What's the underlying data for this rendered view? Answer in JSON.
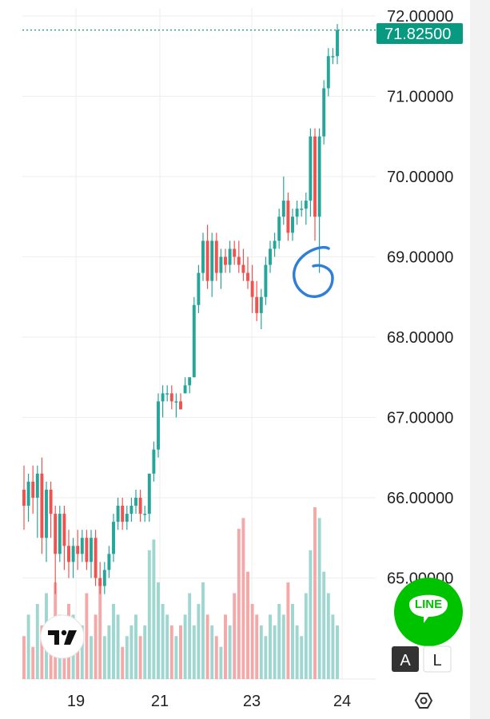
{
  "chart_data": {
    "type": "candlestick",
    "y_axis_ticks": [
      "72.00000",
      "71.00000",
      "70.00000",
      "69.00000",
      "68.00000",
      "67.00000",
      "66.00000",
      "65.00000"
    ],
    "y_axis_tick_values": [
      72,
      71,
      70,
      69,
      68,
      67,
      66,
      65
    ],
    "x_axis_ticks": [
      "19",
      "21",
      "23",
      "24"
    ],
    "current_price_label": "71.82500",
    "current_price": 71.825,
    "grid": true,
    "colors": {
      "up": "#26a69a",
      "down": "#ef5350",
      "up_volume": "#9fd6d0",
      "down_volume": "#f4a9a8",
      "price_tag": "#089981",
      "annotation": "#2f7fd8"
    },
    "candles": [
      {
        "o": 66.1,
        "h": 66.4,
        "l": 65.6,
        "c": 65.9
      },
      {
        "o": 65.9,
        "h": 66.3,
        "l": 65.7,
        "c": 66.2
      },
      {
        "o": 66.2,
        "h": 66.4,
        "l": 65.8,
        "c": 66.0
      },
      {
        "o": 66.0,
        "h": 66.4,
        "l": 65.5,
        "c": 66.3
      },
      {
        "o": 66.3,
        "h": 66.5,
        "l": 65.3,
        "c": 65.5
      },
      {
        "o": 65.5,
        "h": 66.2,
        "l": 65.2,
        "c": 66.1
      },
      {
        "o": 66.1,
        "h": 66.2,
        "l": 65.5,
        "c": 65.8
      },
      {
        "o": 65.8,
        "h": 65.9,
        "l": 64.8,
        "c": 65.3
      },
      {
        "o": 65.3,
        "h": 65.9,
        "l": 65.2,
        "c": 65.8
      },
      {
        "o": 65.8,
        "h": 65.9,
        "l": 65.1,
        "c": 65.4
      },
      {
        "o": 65.4,
        "h": 65.6,
        "l": 65.0,
        "c": 65.2
      },
      {
        "o": 65.2,
        "h": 65.5,
        "l": 65.0,
        "c": 65.4
      },
      {
        "o": 65.4,
        "h": 65.6,
        "l": 65.1,
        "c": 65.3
      },
      {
        "o": 65.3,
        "h": 65.6,
        "l": 65.2,
        "c": 65.5
      },
      {
        "o": 65.5,
        "h": 65.6,
        "l": 65.1,
        "c": 65.2
      },
      {
        "o": 65.2,
        "h": 65.6,
        "l": 65.0,
        "c": 65.5
      },
      {
        "o": 65.5,
        "h": 65.6,
        "l": 64.9,
        "c": 65.0
      },
      {
        "o": 65.0,
        "h": 65.2,
        "l": 64.8,
        "c": 64.9
      },
      {
        "o": 64.9,
        "h": 65.2,
        "l": 64.8,
        "c": 65.1
      },
      {
        "o": 65.1,
        "h": 65.4,
        "l": 65.0,
        "c": 65.3
      },
      {
        "o": 65.3,
        "h": 65.8,
        "l": 65.2,
        "c": 65.7
      },
      {
        "o": 65.7,
        "h": 66.0,
        "l": 65.6,
        "c": 65.9
      },
      {
        "o": 65.9,
        "h": 66.0,
        "l": 65.6,
        "c": 65.7
      },
      {
        "o": 65.7,
        "h": 65.9,
        "l": 65.6,
        "c": 65.8
      },
      {
        "o": 65.8,
        "h": 66.0,
        "l": 65.7,
        "c": 65.9
      },
      {
        "o": 65.9,
        "h": 66.1,
        "l": 65.8,
        "c": 66.0
      },
      {
        "o": 66.0,
        "h": 66.1,
        "l": 65.7,
        "c": 65.8
      },
      {
        "o": 65.8,
        "h": 65.9,
        "l": 65.7,
        "c": 65.8
      },
      {
        "o": 65.8,
        "h": 66.3,
        "l": 65.7,
        "c": 66.3
      },
      {
        "o": 66.3,
        "h": 66.7,
        "l": 66.2,
        "c": 66.6
      },
      {
        "o": 66.6,
        "h": 67.3,
        "l": 66.5,
        "c": 67.2
      },
      {
        "o": 67.2,
        "h": 67.4,
        "l": 67.0,
        "c": 67.3
      },
      {
        "o": 67.3,
        "h": 67.4,
        "l": 67.2,
        "c": 67.3
      },
      {
        "o": 67.3,
        "h": 67.4,
        "l": 67.1,
        "c": 67.2
      },
      {
        "o": 67.2,
        "h": 67.3,
        "l": 67.0,
        "c": 67.2
      },
      {
        "o": 67.2,
        "h": 67.3,
        "l": 67.1,
        "c": 67.1
      },
      {
        "o": 67.3,
        "h": 67.5,
        "l": 67.3,
        "c": 67.4
      },
      {
        "o": 67.4,
        "h": 67.5,
        "l": 67.3,
        "c": 67.5
      },
      {
        "o": 67.5,
        "h": 68.5,
        "l": 67.5,
        "c": 68.4
      },
      {
        "o": 68.4,
        "h": 68.9,
        "l": 68.3,
        "c": 68.8
      },
      {
        "o": 68.8,
        "h": 69.3,
        "l": 68.7,
        "c": 69.2
      },
      {
        "o": 69.2,
        "h": 69.4,
        "l": 68.6,
        "c": 68.7
      },
      {
        "o": 68.7,
        "h": 69.3,
        "l": 68.5,
        "c": 69.2
      },
      {
        "o": 69.2,
        "h": 69.3,
        "l": 68.7,
        "c": 68.8
      },
      {
        "o": 68.8,
        "h": 69.1,
        "l": 68.6,
        "c": 69.0
      },
      {
        "o": 69.0,
        "h": 69.1,
        "l": 68.8,
        "c": 68.9
      },
      {
        "o": 68.9,
        "h": 69.2,
        "l": 68.8,
        "c": 69.1
      },
      {
        "o": 69.1,
        "h": 69.2,
        "l": 68.9,
        "c": 69.0
      },
      {
        "o": 69.0,
        "h": 69.2,
        "l": 68.8,
        "c": 68.9
      },
      {
        "o": 68.9,
        "h": 69.1,
        "l": 68.7,
        "c": 68.8
      },
      {
        "o": 68.8,
        "h": 69.0,
        "l": 68.6,
        "c": 68.7
      },
      {
        "o": 68.7,
        "h": 68.9,
        "l": 68.3,
        "c": 68.5
      },
      {
        "o": 68.5,
        "h": 68.7,
        "l": 68.2,
        "c": 68.3
      },
      {
        "o": 68.3,
        "h": 68.6,
        "l": 68.1,
        "c": 68.5
      },
      {
        "o": 68.5,
        "h": 69.0,
        "l": 68.4,
        "c": 68.9
      },
      {
        "o": 68.9,
        "h": 69.2,
        "l": 68.8,
        "c": 69.1
      },
      {
        "o": 69.1,
        "h": 69.3,
        "l": 69.0,
        "c": 69.2
      },
      {
        "o": 69.2,
        "h": 69.6,
        "l": 69.1,
        "c": 69.5
      },
      {
        "o": 69.5,
        "h": 70.0,
        "l": 69.4,
        "c": 69.7
      },
      {
        "o": 69.7,
        "h": 69.8,
        "l": 69.2,
        "c": 69.3
      },
      {
        "o": 69.3,
        "h": 69.6,
        "l": 69.2,
        "c": 69.5
      },
      {
        "o": 69.5,
        "h": 69.7,
        "l": 69.4,
        "c": 69.6
      },
      {
        "o": 69.6,
        "h": 69.7,
        "l": 69.5,
        "c": 69.6
      },
      {
        "o": 69.6,
        "h": 69.8,
        "l": 69.4,
        "c": 69.7
      },
      {
        "o": 69.7,
        "h": 70.6,
        "l": 69.5,
        "c": 70.5
      },
      {
        "o": 70.5,
        "h": 70.6,
        "l": 69.2,
        "c": 69.5
      },
      {
        "o": 69.5,
        "h": 70.6,
        "l": 68.8,
        "c": 70.5
      },
      {
        "o": 70.5,
        "h": 71.2,
        "l": 70.4,
        "c": 71.1
      },
      {
        "o": 71.1,
        "h": 71.6,
        "l": 71.0,
        "c": 71.5
      },
      {
        "o": 71.5,
        "h": 71.6,
        "l": 71.4,
        "c": 71.5
      },
      {
        "o": 71.5,
        "h": 71.9,
        "l": 71.4,
        "c": 71.825
      }
    ],
    "volumes": [
      4,
      6,
      3,
      7,
      5,
      8,
      5,
      9,
      6,
      4,
      7,
      6,
      3,
      5,
      8,
      4,
      6,
      9,
      4,
      5,
      7,
      6,
      3,
      4,
      5,
      6,
      4,
      5,
      12,
      13,
      9,
      7,
      6,
      5,
      4,
      5,
      6,
      8,
      5,
      7,
      9,
      6,
      5,
      4,
      3,
      6,
      5,
      8,
      14,
      15,
      10,
      7,
      6,
      5,
      4,
      6,
      5,
      7,
      6,
      9,
      7,
      5,
      4,
      8,
      12,
      16,
      15,
      10,
      8,
      6,
      5
    ]
  }
}
